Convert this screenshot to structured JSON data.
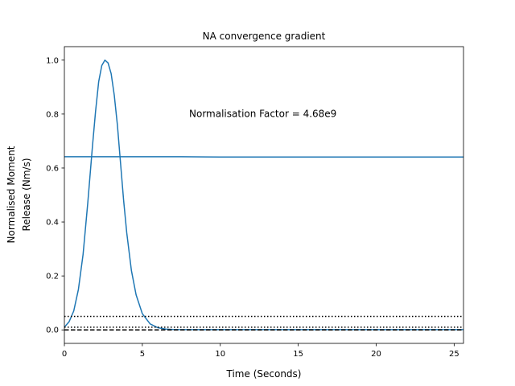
{
  "chart_data": {
    "type": "line",
    "title": "NA convergence gradient",
    "xlabel": "Time (Seconds)",
    "ylabel": [
      "Normalised Moment",
      "Release (Nm/s)"
    ],
    "xlim": [
      0,
      25.6
    ],
    "ylim": [
      -0.05,
      1.05
    ],
    "x_ticks": [
      0,
      5,
      10,
      15,
      20,
      25
    ],
    "x_tick_labels": [
      "0",
      "5",
      "10",
      "15",
      "20",
      "25"
    ],
    "y_ticks": [
      0.0,
      0.2,
      0.4,
      0.6,
      0.8,
      1.0
    ],
    "y_tick_labels": [
      "0.0",
      "0.2",
      "0.4",
      "0.6",
      "0.8",
      "1.0"
    ],
    "grid": false,
    "legend": "none",
    "annotation": {
      "text": "Normalisation Factor = 4.68e9",
      "x": 8.0,
      "y": 0.8
    },
    "series": [
      {
        "style": "solid",
        "color": "#1f77b4",
        "x": [
          0,
          0.3,
          0.6,
          0.9,
          1.2,
          1.5,
          1.8,
          2.0,
          2.2,
          2.4,
          2.6,
          2.8,
          3.0,
          3.2,
          3.4,
          3.6,
          3.8,
          4.0,
          4.3,
          4.6,
          5.0,
          5.5,
          6.0,
          6.5,
          7.0,
          8.0,
          10.0,
          15.0,
          20.0,
          25.6
        ],
        "y": [
          0.01,
          0.03,
          0.07,
          0.15,
          0.28,
          0.47,
          0.68,
          0.81,
          0.92,
          0.98,
          1.0,
          0.99,
          0.95,
          0.87,
          0.76,
          0.62,
          0.48,
          0.36,
          0.22,
          0.13,
          0.06,
          0.022,
          0.008,
          0.003,
          0.0015,
          0.001,
          0.001,
          0.001,
          0.001,
          0.001
        ]
      },
      {
        "style": "solid",
        "color": "#1f77b4",
        "x": [
          0,
          5,
          7.5,
          10,
          15,
          20,
          25.6
        ],
        "y": [
          0.642,
          0.642,
          0.642,
          0.641,
          0.641,
          0.641,
          0.641
        ]
      },
      {
        "style": "dotted",
        "color": "#000000",
        "x": [
          0,
          25.6
        ],
        "y": [
          0.05,
          0.05
        ]
      },
      {
        "style": "dotted",
        "color": "#000000",
        "x": [
          0,
          25.6
        ],
        "y": [
          0.01,
          0.01
        ]
      },
      {
        "style": "dashed",
        "color": "#000000",
        "x": [
          0,
          25.6
        ],
        "y": [
          0.0,
          0.0
        ]
      }
    ]
  }
}
